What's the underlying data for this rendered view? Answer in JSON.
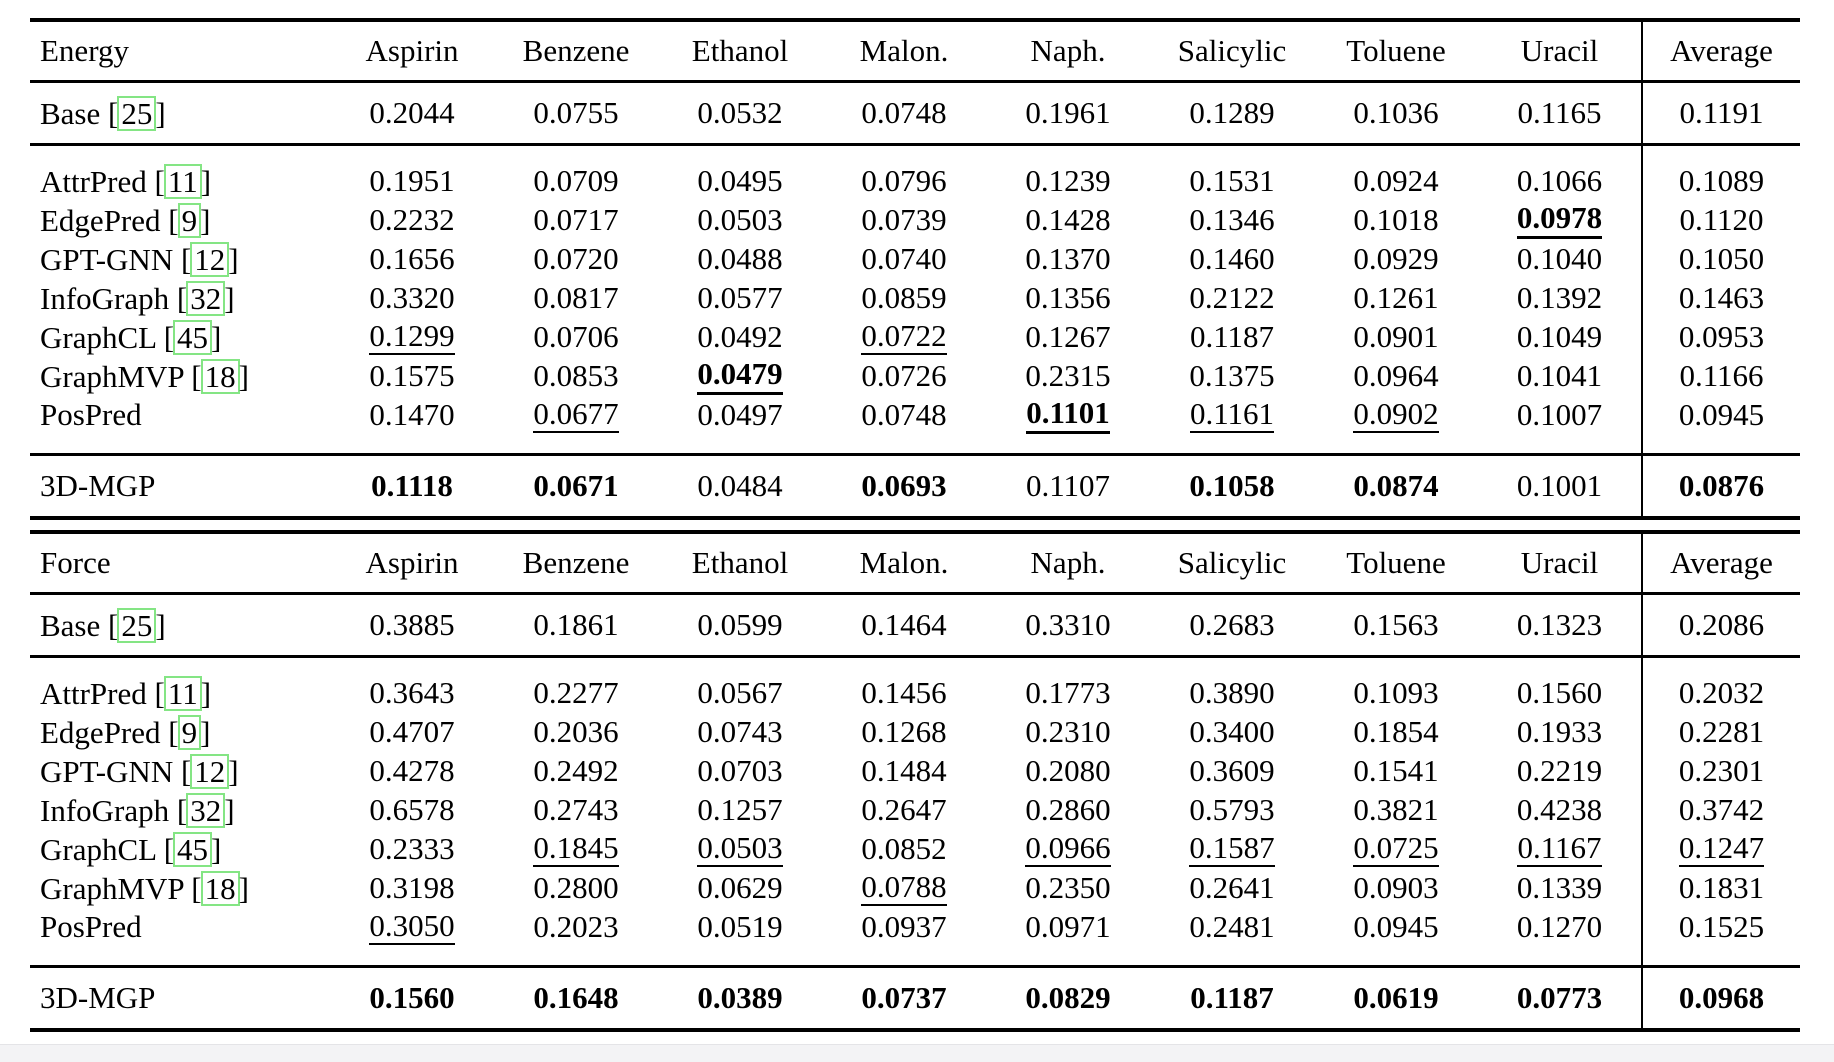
{
  "colors": {
    "citation_box_green": "#84e584",
    "rule_black": "#000000",
    "footer_strip_gray": "#f3f3f5"
  },
  "columns": [
    "Aspirin",
    "Benzene",
    "Ethanol",
    "Malon.",
    "Naph.",
    "Salicylic",
    "Toluene",
    "Uracil",
    "Average"
  ],
  "sections": [
    {
      "title": "Energy",
      "rows": [
        {
          "label": "Base",
          "cite": "25",
          "group": "base",
          "cells": [
            [
              "0.2044"
            ],
            [
              "0.0755"
            ],
            [
              "0.0532"
            ],
            [
              "0.0748"
            ],
            [
              "0.1961"
            ],
            [
              "0.1289"
            ],
            [
              "0.1036"
            ],
            [
              "0.1165"
            ],
            [
              "0.1191"
            ]
          ]
        },
        {
          "label": "AttrPred",
          "cite": "11",
          "group": "method",
          "cells": [
            [
              "0.1951"
            ],
            [
              "0.0709"
            ],
            [
              "0.0495"
            ],
            [
              "0.0796"
            ],
            [
              "0.1239"
            ],
            [
              "0.1531"
            ],
            [
              "0.0924"
            ],
            [
              "0.1066"
            ],
            [
              "0.1089"
            ]
          ]
        },
        {
          "label": "EdgePred",
          "cite": "9",
          "group": "method",
          "cells": [
            [
              "0.2232"
            ],
            [
              "0.0717"
            ],
            [
              "0.0503"
            ],
            [
              "0.0739"
            ],
            [
              "0.1428"
            ],
            [
              "0.1346"
            ],
            [
              "0.1018"
            ],
            [
              "0.0978",
              "bu"
            ],
            [
              "0.1120"
            ]
          ]
        },
        {
          "label": "GPT-GNN",
          "cite": "12",
          "group": "method",
          "cells": [
            [
              "0.1656"
            ],
            [
              "0.0720"
            ],
            [
              "0.0488"
            ],
            [
              "0.0740"
            ],
            [
              "0.1370"
            ],
            [
              "0.1460"
            ],
            [
              "0.0929"
            ],
            [
              "0.1040"
            ],
            [
              "0.1050"
            ]
          ]
        },
        {
          "label": "InfoGraph",
          "cite": "32",
          "group": "method",
          "cells": [
            [
              "0.3320"
            ],
            [
              "0.0817"
            ],
            [
              "0.0577"
            ],
            [
              "0.0859"
            ],
            [
              "0.1356"
            ],
            [
              "0.2122"
            ],
            [
              "0.1261"
            ],
            [
              "0.1392"
            ],
            [
              "0.1463"
            ]
          ]
        },
        {
          "label": "GraphCL",
          "cite": "45",
          "group": "method",
          "cells": [
            [
              "0.1299",
              "u"
            ],
            [
              "0.0706"
            ],
            [
              "0.0492"
            ],
            [
              "0.0722",
              "u"
            ],
            [
              "0.1267"
            ],
            [
              "0.1187"
            ],
            [
              "0.0901"
            ],
            [
              "0.1049"
            ],
            [
              "0.0953"
            ]
          ]
        },
        {
          "label": "GraphMVP",
          "cite": "18",
          "group": "method",
          "cells": [
            [
              "0.1575"
            ],
            [
              "0.0853"
            ],
            [
              "0.0479",
              "bu"
            ],
            [
              "0.0726"
            ],
            [
              "0.2315"
            ],
            [
              "0.1375"
            ],
            [
              "0.0964"
            ],
            [
              "0.1041"
            ],
            [
              "0.1166"
            ]
          ]
        },
        {
          "label": "PosPred",
          "cite": null,
          "group": "method",
          "cells": [
            [
              "0.1470"
            ],
            [
              "0.0677",
              "u"
            ],
            [
              "0.0497"
            ],
            [
              "0.0748"
            ],
            [
              "0.1101",
              "bu"
            ],
            [
              "0.1161",
              "u"
            ],
            [
              "0.0902",
              "u"
            ],
            [
              "0.1007"
            ],
            [
              "0.0945"
            ]
          ]
        },
        {
          "label": "3D-MGP",
          "cite": null,
          "group": "final",
          "cells": [
            [
              "0.1118",
              "b"
            ],
            [
              "0.0671",
              "b"
            ],
            [
              "0.0484"
            ],
            [
              "0.0693",
              "b"
            ],
            [
              "0.1107"
            ],
            [
              "0.1058",
              "b"
            ],
            [
              "0.0874",
              "b"
            ],
            [
              "0.1001"
            ],
            [
              "0.0876",
              "b"
            ]
          ]
        }
      ]
    },
    {
      "title": "Force",
      "rows": [
        {
          "label": "Base",
          "cite": "25",
          "group": "base",
          "cells": [
            [
              "0.3885"
            ],
            [
              "0.1861"
            ],
            [
              "0.0599"
            ],
            [
              "0.1464"
            ],
            [
              "0.3310"
            ],
            [
              "0.2683"
            ],
            [
              "0.1563"
            ],
            [
              "0.1323"
            ],
            [
              "0.2086"
            ]
          ]
        },
        {
          "label": "AttrPred",
          "cite": "11",
          "group": "method",
          "cells": [
            [
              "0.3643"
            ],
            [
              "0.2277"
            ],
            [
              "0.0567"
            ],
            [
              "0.1456"
            ],
            [
              "0.1773"
            ],
            [
              "0.3890"
            ],
            [
              "0.1093"
            ],
            [
              "0.1560"
            ],
            [
              "0.2032"
            ]
          ]
        },
        {
          "label": "EdgePred",
          "cite": "9",
          "group": "method",
          "cells": [
            [
              "0.4707"
            ],
            [
              "0.2036"
            ],
            [
              "0.0743"
            ],
            [
              "0.1268"
            ],
            [
              "0.2310"
            ],
            [
              "0.3400"
            ],
            [
              "0.1854"
            ],
            [
              "0.1933"
            ],
            [
              "0.2281"
            ]
          ]
        },
        {
          "label": "GPT-GNN",
          "cite": "12",
          "group": "method",
          "cells": [
            [
              "0.4278"
            ],
            [
              "0.2492"
            ],
            [
              "0.0703"
            ],
            [
              "0.1484"
            ],
            [
              "0.2080"
            ],
            [
              "0.3609"
            ],
            [
              "0.1541"
            ],
            [
              "0.2219"
            ],
            [
              "0.2301"
            ]
          ]
        },
        {
          "label": "InfoGraph",
          "cite": "32",
          "group": "method",
          "cells": [
            [
              "0.6578"
            ],
            [
              "0.2743"
            ],
            [
              "0.1257"
            ],
            [
              "0.2647"
            ],
            [
              "0.2860"
            ],
            [
              "0.5793"
            ],
            [
              "0.3821"
            ],
            [
              "0.4238"
            ],
            [
              "0.3742"
            ]
          ]
        },
        {
          "label": "GraphCL",
          "cite": "45",
          "group": "method",
          "cells": [
            [
              "0.2333"
            ],
            [
              "0.1845",
              "u"
            ],
            [
              "0.0503",
              "u"
            ],
            [
              "0.0852"
            ],
            [
              "0.0966",
              "u"
            ],
            [
              "0.1587",
              "u"
            ],
            [
              "0.0725",
              "u"
            ],
            [
              "0.1167",
              "u"
            ],
            [
              "0.1247",
              "u"
            ]
          ]
        },
        {
          "label": "GraphMVP",
          "cite": "18",
          "group": "method",
          "cells": [
            [
              "0.3198"
            ],
            [
              "0.2800"
            ],
            [
              "0.0629"
            ],
            [
              "0.0788",
              "u"
            ],
            [
              "0.2350"
            ],
            [
              "0.2641"
            ],
            [
              "0.0903"
            ],
            [
              "0.1339"
            ],
            [
              "0.1831"
            ]
          ]
        },
        {
          "label": "PosPred",
          "cite": null,
          "group": "method",
          "cells": [
            [
              "0.3050",
              "u"
            ],
            [
              "0.2023"
            ],
            [
              "0.0519"
            ],
            [
              "0.0937"
            ],
            [
              "0.0971"
            ],
            [
              "0.2481"
            ],
            [
              "0.0945"
            ],
            [
              "0.1270"
            ],
            [
              "0.1525"
            ]
          ]
        },
        {
          "label": "3D-MGP",
          "cite": null,
          "group": "final",
          "cells": [
            [
              "0.1560",
              "b"
            ],
            [
              "0.1648",
              "b"
            ],
            [
              "0.0389",
              "b"
            ],
            [
              "0.0737",
              "b"
            ],
            [
              "0.0829",
              "b"
            ],
            [
              "0.1187",
              "b"
            ],
            [
              "0.0619",
              "b"
            ],
            [
              "0.0773",
              "b"
            ],
            [
              "0.0968",
              "b"
            ]
          ]
        }
      ]
    }
  ]
}
